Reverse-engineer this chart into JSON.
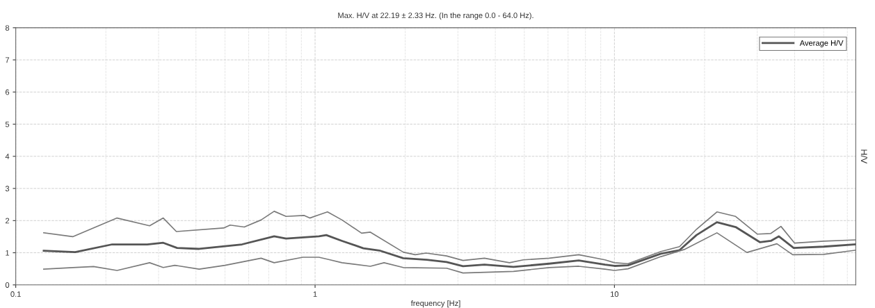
{
  "chart_data": {
    "type": "line",
    "title": "Max. H/V at 22.19 ± 2.33 Hz. (In the range 0.0 - 64.0 Hz).",
    "xlabel": "frequency [Hz]",
    "ylabel": "H/V",
    "log": "x",
    "xlim": [
      0.1,
      64
    ],
    "xticks": [
      0.1,
      1,
      10
    ],
    "ylim": [
      0,
      8
    ],
    "yticks": [
      0,
      1,
      2,
      3,
      4,
      5,
      6,
      7,
      8
    ],
    "grid": true,
    "legend": "top right",
    "marker": "none",
    "line_style": "solid",
    "series": [
      {
        "color": "#7a7a7a",
        "x": [
          0.124,
          0.155,
          0.218,
          0.28,
          0.311,
          0.344,
          0.495,
          0.52,
          0.58,
          0.66,
          0.73,
          0.8,
          0.92,
          0.96,
          1.03,
          1.1,
          1.23,
          1.43,
          1.53,
          1.97,
          2.16,
          2.35,
          2.75,
          3.12,
          3.68,
          4.46,
          4.96,
          6.05,
          7.6,
          9.3,
          10.0,
          11.1,
          14.3,
          16.5,
          18.8,
          22.0,
          25.4,
          30.0,
          33.3,
          36.0,
          40.0,
          50.0,
          64
        ],
        "values": [
          1.62,
          1.5,
          2.08,
          1.84,
          2.08,
          1.66,
          1.77,
          1.86,
          1.8,
          2.02,
          2.29,
          2.13,
          2.16,
          2.08,
          2.18,
          2.27,
          2.02,
          1.61,
          1.64,
          1.02,
          0.94,
          0.99,
          0.9,
          0.76,
          0.83,
          0.69,
          0.78,
          0.83,
          0.94,
          0.78,
          0.69,
          0.66,
          1.04,
          1.19,
          1.73,
          2.27,
          2.13,
          1.58,
          1.6,
          1.82,
          1.3,
          1.36,
          1.4
        ]
      },
      {
        "name": "Average H/V",
        "color": "#555555",
        "x": [
          0.124,
          0.158,
          0.21,
          0.275,
          0.311,
          0.346,
          0.41,
          0.57,
          0.73,
          0.8,
          1.03,
          1.09,
          1.23,
          1.45,
          1.64,
          1.97,
          2.36,
          2.75,
          3.12,
          3.68,
          4.6,
          6.05,
          7.6,
          9.3,
          10.0,
          11.1,
          14.3,
          16.5,
          18.8,
          22.0,
          25.4,
          30.6,
          33.3,
          35.4,
          39.7,
          50.0,
          64
        ],
        "values": [
          1.06,
          1.02,
          1.26,
          1.26,
          1.31,
          1.15,
          1.12,
          1.26,
          1.51,
          1.44,
          1.51,
          1.55,
          1.37,
          1.14,
          1.07,
          0.83,
          0.78,
          0.71,
          0.58,
          0.63,
          0.56,
          0.66,
          0.76,
          0.63,
          0.59,
          0.61,
          0.97,
          1.08,
          1.55,
          1.95,
          1.8,
          1.33,
          1.37,
          1.51,
          1.15,
          1.19,
          1.26
        ]
      },
      {
        "color": "#7a7a7a",
        "x": [
          0.124,
          0.155,
          0.182,
          0.218,
          0.28,
          0.311,
          0.34,
          0.41,
          0.5,
          0.66,
          0.73,
          0.91,
          1.03,
          1.11,
          1.23,
          1.53,
          1.7,
          1.97,
          2.75,
          3.12,
          4.6,
          6.05,
          7.6,
          9.3,
          10.0,
          11.1,
          14.3,
          17.1,
          22.0,
          27.7,
          34.9,
          39.4,
          50.0,
          64
        ],
        "values": [
          0.49,
          0.54,
          0.57,
          0.45,
          0.69,
          0.54,
          0.61,
          0.49,
          0.61,
          0.83,
          0.69,
          0.86,
          0.86,
          0.79,
          0.69,
          0.58,
          0.69,
          0.54,
          0.52,
          0.37,
          0.42,
          0.54,
          0.58,
          0.49,
          0.45,
          0.5,
          0.88,
          1.1,
          1.62,
          1.01,
          1.28,
          0.94,
          0.95,
          1.08
        ]
      }
    ]
  }
}
